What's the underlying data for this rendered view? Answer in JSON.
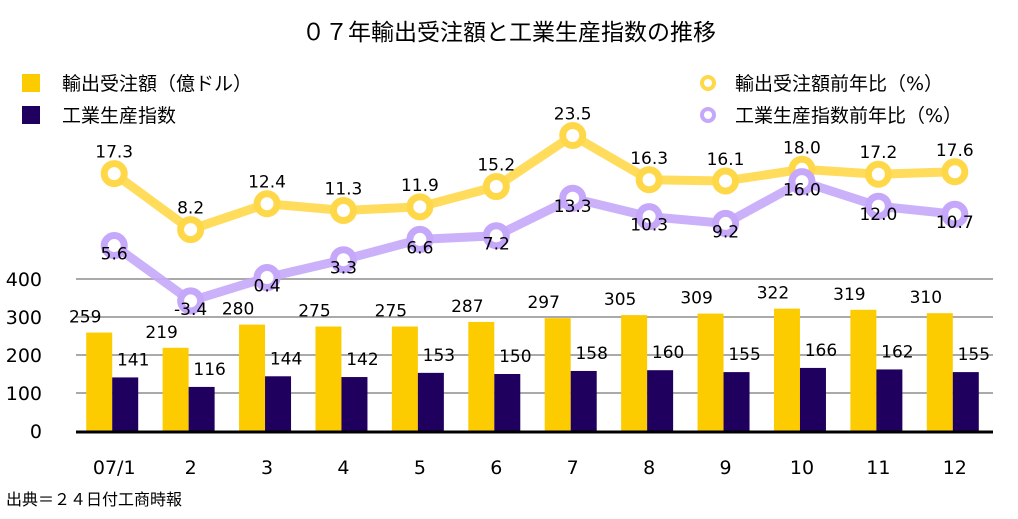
{
  "chart_data": {
    "type": "bar+line",
    "title": "０７年輸出受注額と工業生産指数の推移",
    "categories": [
      "07/1",
      "2",
      "3",
      "4",
      "5",
      "6",
      "7",
      "8",
      "9",
      "10",
      "11",
      "12"
    ],
    "bar_axis": {
      "ticks": [
        0,
        100,
        200,
        300,
        400
      ],
      "ylim": [
        0,
        400
      ],
      "grid": true
    },
    "bar_series": [
      {
        "name": "輸出受注額（億ドル）",
        "color": "#FDCC00",
        "values": [
          259,
          219,
          280,
          275,
          275,
          287,
          297,
          305,
          309,
          322,
          319,
          310
        ]
      },
      {
        "name": "工業生産指数",
        "color": "#20005E",
        "values": [
          141,
          116,
          144,
          142,
          153,
          150,
          158,
          160,
          155,
          166,
          162,
          155
        ]
      }
    ],
    "line_series": [
      {
        "name": "輸出受注額前年比（%）",
        "color": "#FFD84A",
        "values": [
          17.3,
          8.2,
          12.4,
          11.3,
          11.9,
          15.2,
          23.5,
          16.3,
          16.1,
          18.0,
          17.2,
          17.6
        ],
        "labels": [
          "17.3",
          "8.2",
          "12.4",
          "11.3",
          "11.9",
          "15.2",
          "23.5",
          "16.3",
          "16.1",
          "18.0",
          "17.2",
          "17.6"
        ]
      },
      {
        "name": "工業生産指数前年比（%）",
        "color": "#C5A8FA",
        "values": [
          5.6,
          -3.4,
          0.4,
          3.3,
          6.6,
          7.2,
          13.3,
          10.3,
          9.2,
          16.0,
          12.0,
          10.7
        ],
        "labels": [
          "5.6",
          "-3.4",
          "0.4",
          "3.3",
          "6.6",
          "7.2",
          "13.3",
          "10.3",
          "9.2",
          "16.0",
          "12.0",
          "10.7"
        ]
      }
    ],
    "legend": {
      "left": [
        "輸出受注額（億ドル）",
        "工業生産指数"
      ],
      "right": [
        "輸出受注額前年比（%）",
        "工業生産指数前年比（%）"
      ]
    },
    "source": "出典＝２４日付工商時報"
  }
}
